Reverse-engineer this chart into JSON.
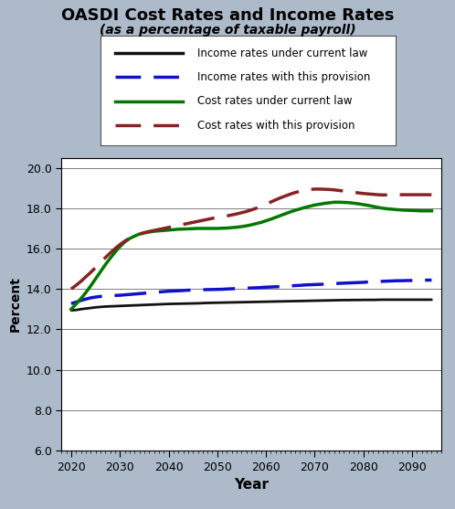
{
  "title": "OASDI Cost Rates and Income Rates",
  "subtitle": "(as a percentage of taxable payroll)",
  "xlabel": "Year",
  "ylabel": "Percent",
  "bg_color": "#adbaca",
  "plot_bg_color": "#ffffff",
  "years": [
    2020,
    2021,
    2022,
    2023,
    2024,
    2025,
    2026,
    2027,
    2028,
    2029,
    2030,
    2031,
    2032,
    2033,
    2034,
    2035,
    2036,
    2037,
    2038,
    2039,
    2040,
    2041,
    2042,
    2043,
    2044,
    2045,
    2046,
    2047,
    2048,
    2049,
    2050,
    2051,
    2052,
    2053,
    2054,
    2055,
    2056,
    2057,
    2058,
    2059,
    2060,
    2061,
    2062,
    2063,
    2064,
    2065,
    2066,
    2067,
    2068,
    2069,
    2070,
    2071,
    2072,
    2073,
    2074,
    2075,
    2076,
    2077,
    2078,
    2079,
    2080,
    2081,
    2082,
    2083,
    2084,
    2085,
    2086,
    2087,
    2088,
    2089,
    2090,
    2091,
    2092,
    2093,
    2094
  ],
  "income_current_law": [
    12.94,
    12.96,
    13.0,
    13.03,
    13.06,
    13.09,
    13.11,
    13.13,
    13.14,
    13.15,
    13.16,
    13.17,
    13.18,
    13.19,
    13.2,
    13.21,
    13.22,
    13.23,
    13.24,
    13.25,
    13.26,
    13.265,
    13.27,
    13.275,
    13.28,
    13.285,
    13.29,
    13.3,
    13.31,
    13.315,
    13.32,
    13.325,
    13.33,
    13.335,
    13.34,
    13.345,
    13.35,
    13.355,
    13.36,
    13.365,
    13.37,
    13.375,
    13.38,
    13.385,
    13.39,
    13.395,
    13.4,
    13.405,
    13.41,
    13.415,
    13.42,
    13.425,
    13.43,
    13.435,
    13.44,
    13.445,
    13.45,
    13.45,
    13.455,
    13.455,
    13.46,
    13.46,
    13.46,
    13.465,
    13.47,
    13.47,
    13.47,
    13.47,
    13.47,
    13.47,
    13.47,
    13.47,
    13.47,
    13.47,
    13.47
  ],
  "income_provision": [
    13.28,
    13.35,
    13.43,
    13.5,
    13.56,
    13.6,
    13.63,
    13.65,
    13.66,
    13.68,
    13.69,
    13.71,
    13.73,
    13.75,
    13.77,
    13.79,
    13.81,
    13.83,
    13.85,
    13.87,
    13.89,
    13.9,
    13.91,
    13.925,
    13.94,
    13.95,
    13.96,
    13.965,
    13.97,
    13.975,
    13.98,
    13.985,
    14.0,
    14.01,
    14.02,
    14.03,
    14.04,
    14.05,
    14.06,
    14.075,
    14.09,
    14.1,
    14.11,
    14.12,
    14.14,
    14.15,
    14.17,
    14.18,
    14.2,
    14.21,
    14.22,
    14.23,
    14.24,
    14.26,
    14.27,
    14.28,
    14.29,
    14.3,
    14.31,
    14.32,
    14.33,
    14.35,
    14.36,
    14.37,
    14.38,
    14.39,
    14.4,
    14.41,
    14.41,
    14.42,
    14.42,
    14.43,
    14.43,
    14.44,
    14.44
  ],
  "cost_current_law": [
    13.0,
    13.25,
    13.52,
    13.82,
    14.15,
    14.5,
    14.85,
    15.2,
    15.52,
    15.82,
    16.1,
    16.33,
    16.5,
    16.62,
    16.72,
    16.78,
    16.82,
    16.86,
    16.88,
    16.9,
    16.92,
    16.94,
    16.96,
    16.97,
    16.98,
    16.99,
    17.0,
    17.0,
    17.0,
    17.0,
    17.0,
    17.01,
    17.02,
    17.04,
    17.06,
    17.09,
    17.13,
    17.18,
    17.24,
    17.3,
    17.38,
    17.46,
    17.55,
    17.64,
    17.73,
    17.82,
    17.9,
    17.97,
    18.04,
    18.1,
    18.16,
    18.2,
    18.24,
    18.27,
    18.3,
    18.3,
    18.29,
    18.28,
    18.25,
    18.22,
    18.18,
    18.14,
    18.09,
    18.04,
    18.0,
    17.97,
    17.95,
    17.93,
    17.91,
    17.9,
    17.89,
    17.88,
    17.87,
    17.87,
    17.87
  ],
  "cost_provision": [
    14.0,
    14.18,
    14.38,
    14.6,
    14.82,
    15.06,
    15.3,
    15.55,
    15.78,
    16.0,
    16.2,
    16.37,
    16.52,
    16.63,
    16.72,
    16.79,
    16.85,
    16.9,
    16.95,
    17.0,
    17.05,
    17.1,
    17.15,
    17.2,
    17.25,
    17.3,
    17.35,
    17.4,
    17.45,
    17.5,
    17.55,
    17.58,
    17.62,
    17.67,
    17.72,
    17.78,
    17.84,
    17.92,
    18.0,
    18.1,
    18.2,
    18.31,
    18.42,
    18.52,
    18.61,
    18.7,
    18.78,
    18.84,
    18.89,
    18.93,
    18.95,
    18.95,
    18.94,
    18.93,
    18.91,
    18.88,
    18.85,
    18.82,
    18.79,
    18.76,
    18.73,
    18.71,
    18.69,
    18.67,
    18.66,
    18.66,
    18.66,
    18.67,
    18.67,
    18.67,
    18.67,
    18.67,
    18.67,
    18.67,
    18.67
  ],
  "ylim": [
    6.0,
    20.5
  ],
  "yticks": [
    6.0,
    8.0,
    10.0,
    12.0,
    14.0,
    16.0,
    18.0,
    20.0
  ],
  "xlim": [
    2018,
    2096
  ],
  "xticks": [
    2020,
    2030,
    2040,
    2050,
    2060,
    2070,
    2080,
    2090
  ],
  "income_current_color": "#111111",
  "income_provision_color": "#1111cc",
  "cost_current_color": "#007700",
  "cost_provision_color": "#882222",
  "legend_labels": [
    "Income rates under current law",
    "Income rates with this provision",
    "Cost rates under current law",
    "Cost rates with this provision"
  ]
}
